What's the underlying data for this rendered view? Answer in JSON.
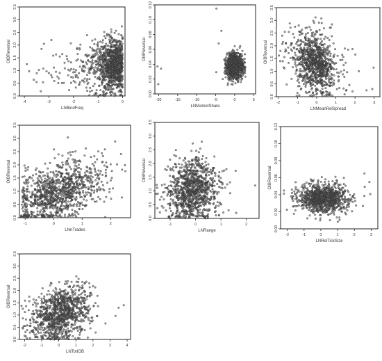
{
  "chart_data": [
    {
      "type": "scatter",
      "xlabel": "LNBindFreq",
      "ylabel": "OIBReversal",
      "xticks": [
        "-4",
        "-3",
        "-2",
        "-1",
        "0"
      ],
      "yticks": [
        "0.0",
        "0.5",
        "1.0",
        "1.5",
        "2.0",
        "2.5",
        "3.0",
        "3.5"
      ],
      "xlim": [
        -4.2,
        0.1
      ],
      "ylim": [
        0,
        3.5
      ],
      "color": "#2b2b2b"
    },
    {
      "type": "scatter",
      "xlabel": "LNMarketShare",
      "ylabel": "OIBReversal",
      "xticks": [
        "-20",
        "-15",
        "-10",
        "-5",
        "0",
        "5"
      ],
      "yticks": [
        "0.00",
        "0.02",
        "0.04",
        "0.06",
        "0.08",
        "0.10",
        "0.12"
      ],
      "xlim": [
        -21,
        5.5
      ],
      "ylim": [
        0,
        0.12
      ],
      "color": "#2b2b2b"
    },
    {
      "type": "scatter",
      "xlabel": "LNMeanRelSpread",
      "ylabel": "OIBReversal",
      "xticks": [
        "-2",
        "-1",
        "0",
        "1",
        "2",
        "3"
      ],
      "yticks": [
        "0.0",
        "0.5",
        "1.0",
        "1.5",
        "2.0",
        "2.5",
        "3.0",
        "3.5"
      ],
      "xlim": [
        -2.1,
        3.3
      ],
      "ylim": [
        0,
        3.5
      ],
      "color": "#2b2b2b"
    },
    {
      "type": "scatter",
      "xlabel": "LNnTrades",
      "ylabel": "OIBReversal",
      "xticks": [
        "-1",
        "0",
        "1",
        "2"
      ],
      "yticks": [
        "0.0",
        "0.5",
        "1.0",
        "1.5",
        "2.0",
        "2.5",
        "3.0",
        "3.5"
      ],
      "xlim": [
        -1.2,
        2.7
      ],
      "ylim": [
        0,
        3.5
      ],
      "color": "#2b2b2b"
    },
    {
      "type": "scatter",
      "xlabel": "LNRange",
      "ylabel": "OIBReversal",
      "xticks": [
        "-1",
        "0",
        "1",
        "2"
      ],
      "yticks": [
        "0.0",
        "0.5",
        "1.0",
        "1.5",
        "2.0",
        "2.5",
        "3.0",
        "3.5"
      ],
      "xlim": [
        -1.6,
        2.5
      ],
      "ylim": [
        0,
        3.5
      ],
      "color": "#2b2b2b"
    },
    {
      "type": "scatter",
      "xlabel": "LNRelTickSize",
      "ylabel": "OIBReversal",
      "xticks": [
        "-2",
        "-1",
        "0",
        "1",
        "2",
        "3"
      ],
      "yticks": [
        "0.00",
        "0.02",
        "0.04",
        "0.06",
        "0.08",
        "0.10",
        "0.12"
      ],
      "xlim": [
        -2.4,
        3.4
      ],
      "ylim": [
        0,
        0.12
      ],
      "color": "#2b2b2b"
    },
    {
      "type": "scatter",
      "xlabel": "LNTotIOB",
      "ylabel": "OIBReversal",
      "xticks": [
        "-2",
        "-1",
        "0",
        "1",
        "2",
        "3",
        "4"
      ],
      "yticks": [
        "0.0",
        "0.5",
        "1.0",
        "1.5",
        "2.0",
        "2.5",
        "3.0",
        "3.5"
      ],
      "xlim": [
        -2.3,
        4.2
      ],
      "ylim": [
        0,
        3.5
      ],
      "color": "#2b2b2b"
    }
  ]
}
